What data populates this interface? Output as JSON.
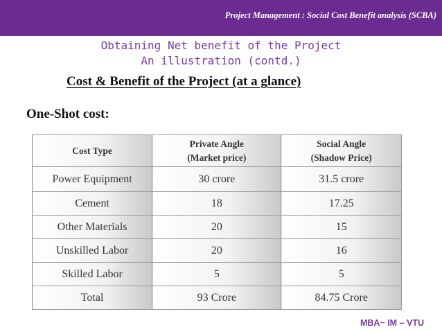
{
  "header": {
    "title": "Project Management : Social Cost Benefit analysis (SCBA)"
  },
  "slide": {
    "title_line1": "Obtaining Net benefit of the Project",
    "title_line2": "An illustration (contd.)",
    "subtitle": "Cost & Benefit of the Project (at a glance)",
    "section_label": "One-Shot cost:"
  },
  "table": {
    "headers": [
      {
        "line1": "Cost Type",
        "line2": ""
      },
      {
        "line1": "Private Angle",
        "line2": "(Market price)"
      },
      {
        "line1": "Social Angle",
        "line2": "(Shadow Price)"
      }
    ],
    "rows": [
      [
        "Power Equipment",
        "30 crore",
        "31.5 crore"
      ],
      [
        "Cement",
        "18",
        "17.25"
      ],
      [
        "Other Materials",
        "20",
        "15"
      ],
      [
        "Unskilled Labor",
        "20",
        "16"
      ],
      [
        "Skilled Labor",
        "5",
        "5"
      ],
      [
        "Total",
        "93 Crore",
        "84.75 Crore"
      ]
    ]
  },
  "footer": {
    "text": "MBA~ IM – VTU"
  },
  "colors": {
    "header_bar": "#6b2c91",
    "title_text": "#7b3aa3",
    "footer_text": "#7b3aa3"
  }
}
